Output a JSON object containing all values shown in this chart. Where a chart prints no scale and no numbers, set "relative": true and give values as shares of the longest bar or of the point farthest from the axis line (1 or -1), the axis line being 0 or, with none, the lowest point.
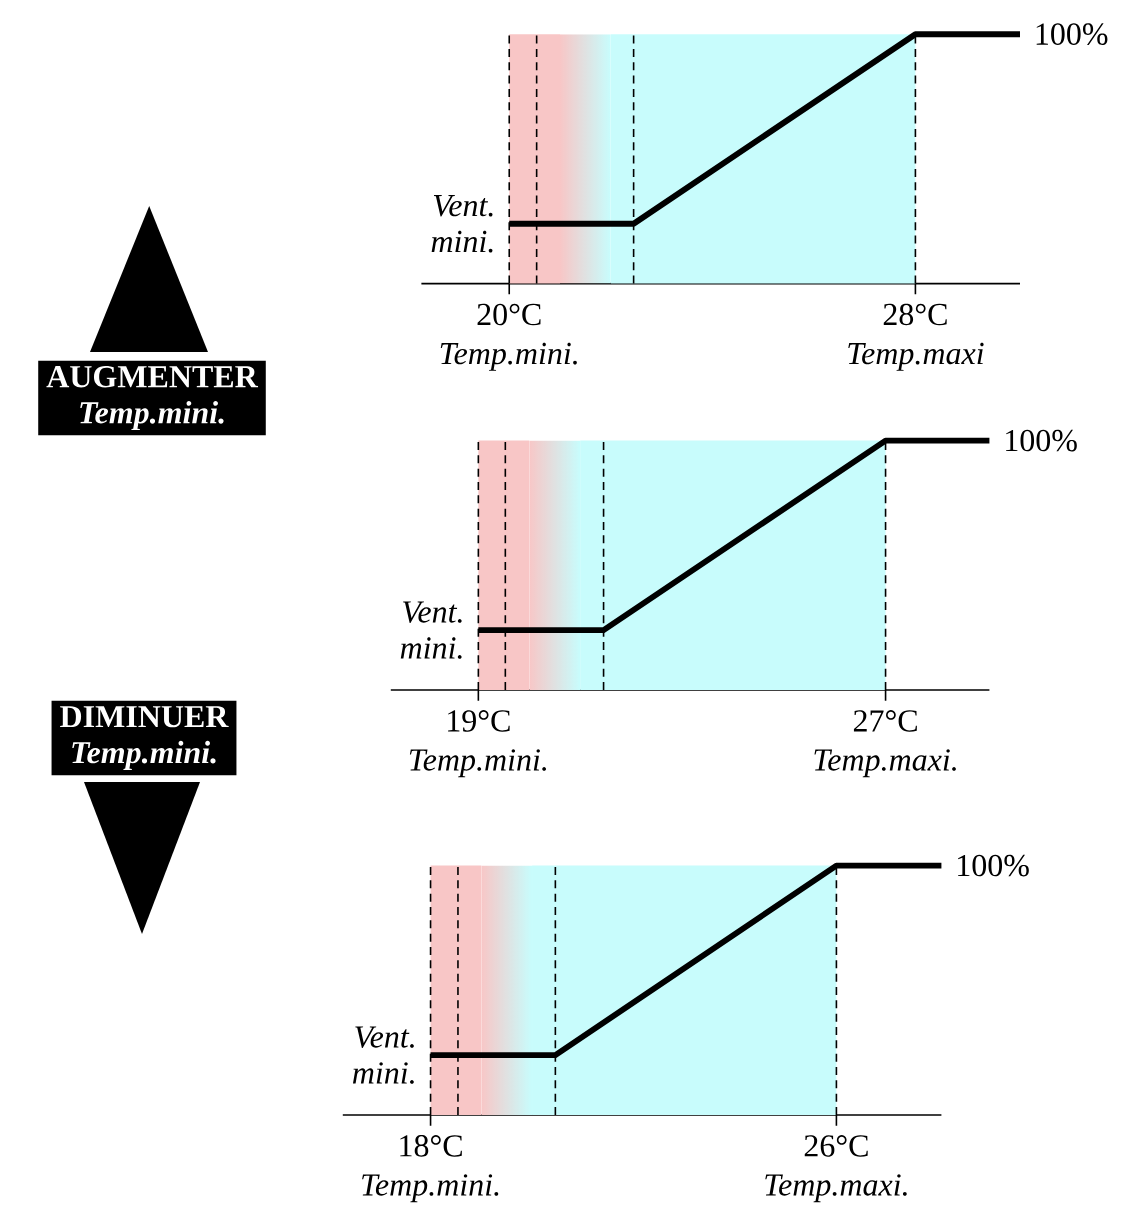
{
  "chart_data": [
    {
      "type": "line",
      "relative": true,
      "xlim": [
        18.27,
        30.06
      ],
      "xticks": [
        {
          "value": 20,
          "label": "20°C"
        },
        {
          "value": 28,
          "label": "28°C"
        }
      ],
      "series": [
        {
          "color": "#000000",
          "x": [
            20,
            22.45,
            28,
            30.06
          ],
          "values": [
            0.24,
            0.24,
            1,
            1
          ]
        }
      ],
      "bands": [
        {
          "axis": "x",
          "from": 20,
          "to": 21.0,
          "color": "#f8c6c6"
        },
        {
          "axis": "x",
          "from": 21.0,
          "to": 22.0,
          "color": [
            "#f8c6c6",
            "#c8fcfc"
          ]
        },
        {
          "axis": "x",
          "from": 22.0,
          "to": 28,
          "color": "#c8fcfc"
        }
      ],
      "ref_lines": [
        {
          "axis": "x",
          "value": 20,
          "line_style": "dashed"
        },
        {
          "axis": "x",
          "value": 20.54,
          "line_style": "dashed"
        },
        {
          "axis": "x",
          "value": 22.45,
          "line_style": "dashed"
        },
        {
          "axis": "x",
          "value": 28,
          "line_style": "dashed"
        }
      ],
      "annotations": [
        {
          "text": "Vent. mini.",
          "x": 20,
          "y": 0.24
        },
        {
          "text": "100%",
          "x": 30.06,
          "y": 1
        },
        "Temp.mini.",
        "Temp.maxi"
      ]
    },
    {
      "type": "line",
      "relative": true,
      "xlim": [
        17.28,
        29.04
      ],
      "xticks": [
        {
          "value": 19,
          "label": "19°C"
        },
        {
          "value": 27,
          "label": "27°C"
        }
      ],
      "series": [
        {
          "color": "#000000",
          "x": [
            19,
            21.46,
            27,
            29.04
          ],
          "values": [
            0.24,
            0.24,
            1,
            1
          ]
        }
      ],
      "bands": [
        {
          "axis": "x",
          "from": 19,
          "to": 20.0,
          "color": "#f8c6c6"
        },
        {
          "axis": "x",
          "from": 20.0,
          "to": 21.0,
          "color": [
            "#f8c6c6",
            "#c8fcfc"
          ]
        },
        {
          "axis": "x",
          "from": 21.0,
          "to": 27,
          "color": "#c8fcfc"
        }
      ],
      "ref_lines": [
        {
          "axis": "x",
          "value": 19,
          "line_style": "dashed"
        },
        {
          "axis": "x",
          "value": 19.53,
          "line_style": "dashed"
        },
        {
          "axis": "x",
          "value": 21.46,
          "line_style": "dashed"
        },
        {
          "axis": "x",
          "value": 27,
          "line_style": "dashed"
        }
      ],
      "annotations": [
        {
          "text": "Vent. mini.",
          "x": 19,
          "y": 0.24
        },
        {
          "text": "100%",
          "x": 29.04,
          "y": 1
        },
        "Temp.mini.",
        "Temp.maxi."
      ]
    },
    {
      "type": "line",
      "relative": true,
      "xlim": [
        16.27,
        28.07
      ],
      "xticks": [
        {
          "value": 18,
          "label": "18°C"
        },
        {
          "value": 26,
          "label": "26°C"
        }
      ],
      "series": [
        {
          "color": "#000000",
          "x": [
            18,
            20.46,
            26,
            28.07
          ],
          "values": [
            0.24,
            0.24,
            1,
            1
          ]
        }
      ],
      "bands": [
        {
          "axis": "x",
          "from": 18,
          "to": 19.0,
          "color": "#f8c6c6"
        },
        {
          "axis": "x",
          "from": 19.0,
          "to": 20.0,
          "color": [
            "#f8c6c6",
            "#c8fcfc"
          ]
        },
        {
          "axis": "x",
          "from": 20.0,
          "to": 26,
          "color": "#c8fcfc"
        }
      ],
      "ref_lines": [
        {
          "axis": "x",
          "value": 18,
          "line_style": "dashed"
        },
        {
          "axis": "x",
          "value": 18.54,
          "line_style": "dashed"
        },
        {
          "axis": "x",
          "value": 20.46,
          "line_style": "dashed"
        },
        {
          "axis": "x",
          "value": 26,
          "line_style": "dashed"
        }
      ],
      "annotations": [
        {
          "text": "Vent. mini.",
          "x": 18,
          "y": 0.24
        },
        {
          "text": "100%",
          "x": 28.07,
          "y": 1
        },
        "Temp.mini.",
        "Temp.maxi."
      ]
    },
    {
      "type": "other",
      "annotations": [
        "AUGMENTER",
        "Temp.mini.",
        "DIMINUER",
        "Temp.mini."
      ]
    }
  ]
}
